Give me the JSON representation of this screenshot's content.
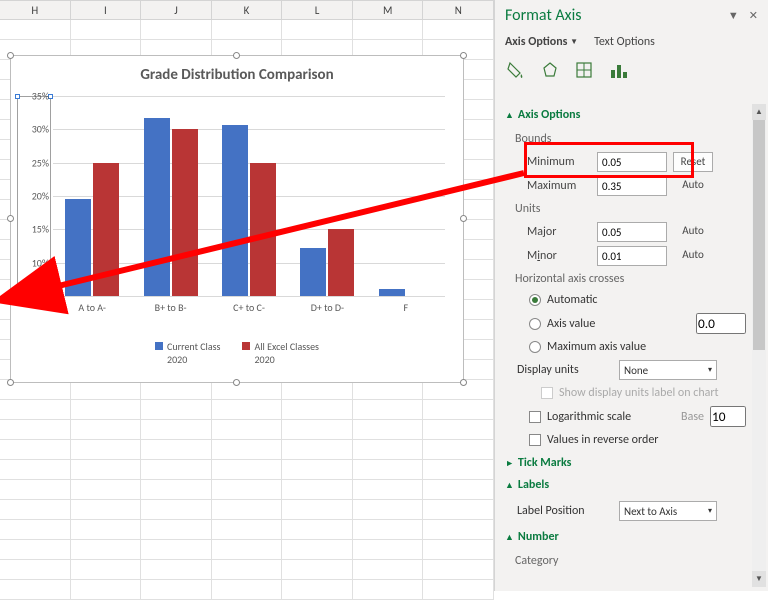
{
  "columns": [
    "H",
    "I",
    "J",
    "K",
    "L",
    "M",
    "N"
  ],
  "chart": {
    "title": "Grade Distribution Comparison",
    "type": "bar",
    "series": [
      {
        "name": "Current  Class\n2020",
        "color": "#4472c4"
      },
      {
        "name": "All Excel Classes\n2020",
        "color": "#b93535"
      }
    ],
    "categories": [
      "A to A-",
      "B+ to B-",
      "C+ to C-",
      "D+ to D-",
      "F"
    ],
    "values_a": [
      0.195,
      0.317,
      0.307,
      0.122,
      0.06
    ],
    "values_b": [
      0.25,
      0.3,
      0.25,
      0.15,
      0.05
    ],
    "ylim": [
      0.05,
      0.35
    ],
    "ytick_step": 0.05,
    "y_tick_labels": [
      "35%",
      "30%",
      "25%",
      "20%",
      "15%",
      "10%",
      "5%"
    ],
    "background_color": "#ffffff",
    "grid_color": "#d9d9d9"
  },
  "panel": {
    "title": "Format Axis",
    "tab_axis": "Axis Options",
    "tab_text": "Text Options",
    "sec_axis": "Axis Options",
    "bounds": "Bounds",
    "min_label": "Minimum",
    "min_value": "0.05",
    "max_label": "Maximum",
    "max_value": "0.35",
    "reset": "Reset",
    "auto": "Auto",
    "units": "Units",
    "major_label": "Major",
    "major_value": "0.05",
    "minor_label": "Minor",
    "minor_value": "0.01",
    "hcross": "Horizontal axis crosses",
    "opt_auto": "Automatic",
    "opt_axisval": "Axis value",
    "opt_axisval_value": "0.0",
    "opt_maxval": "Maximum axis value",
    "display_units": "Display units",
    "display_units_value": "None",
    "show_dul": "Show display units label on chart",
    "log_scale": "Logarithmic scale",
    "base_label": "Base",
    "base_value": "10",
    "reverse": "Values in reverse order",
    "sec_tick": "Tick Marks",
    "sec_labels": "Labels",
    "label_pos": "Label Position",
    "label_pos_value": "Next to Axis",
    "sec_number": "Number",
    "category": "Category"
  },
  "highlight": {
    "arrow_color": "#ff0000"
  }
}
